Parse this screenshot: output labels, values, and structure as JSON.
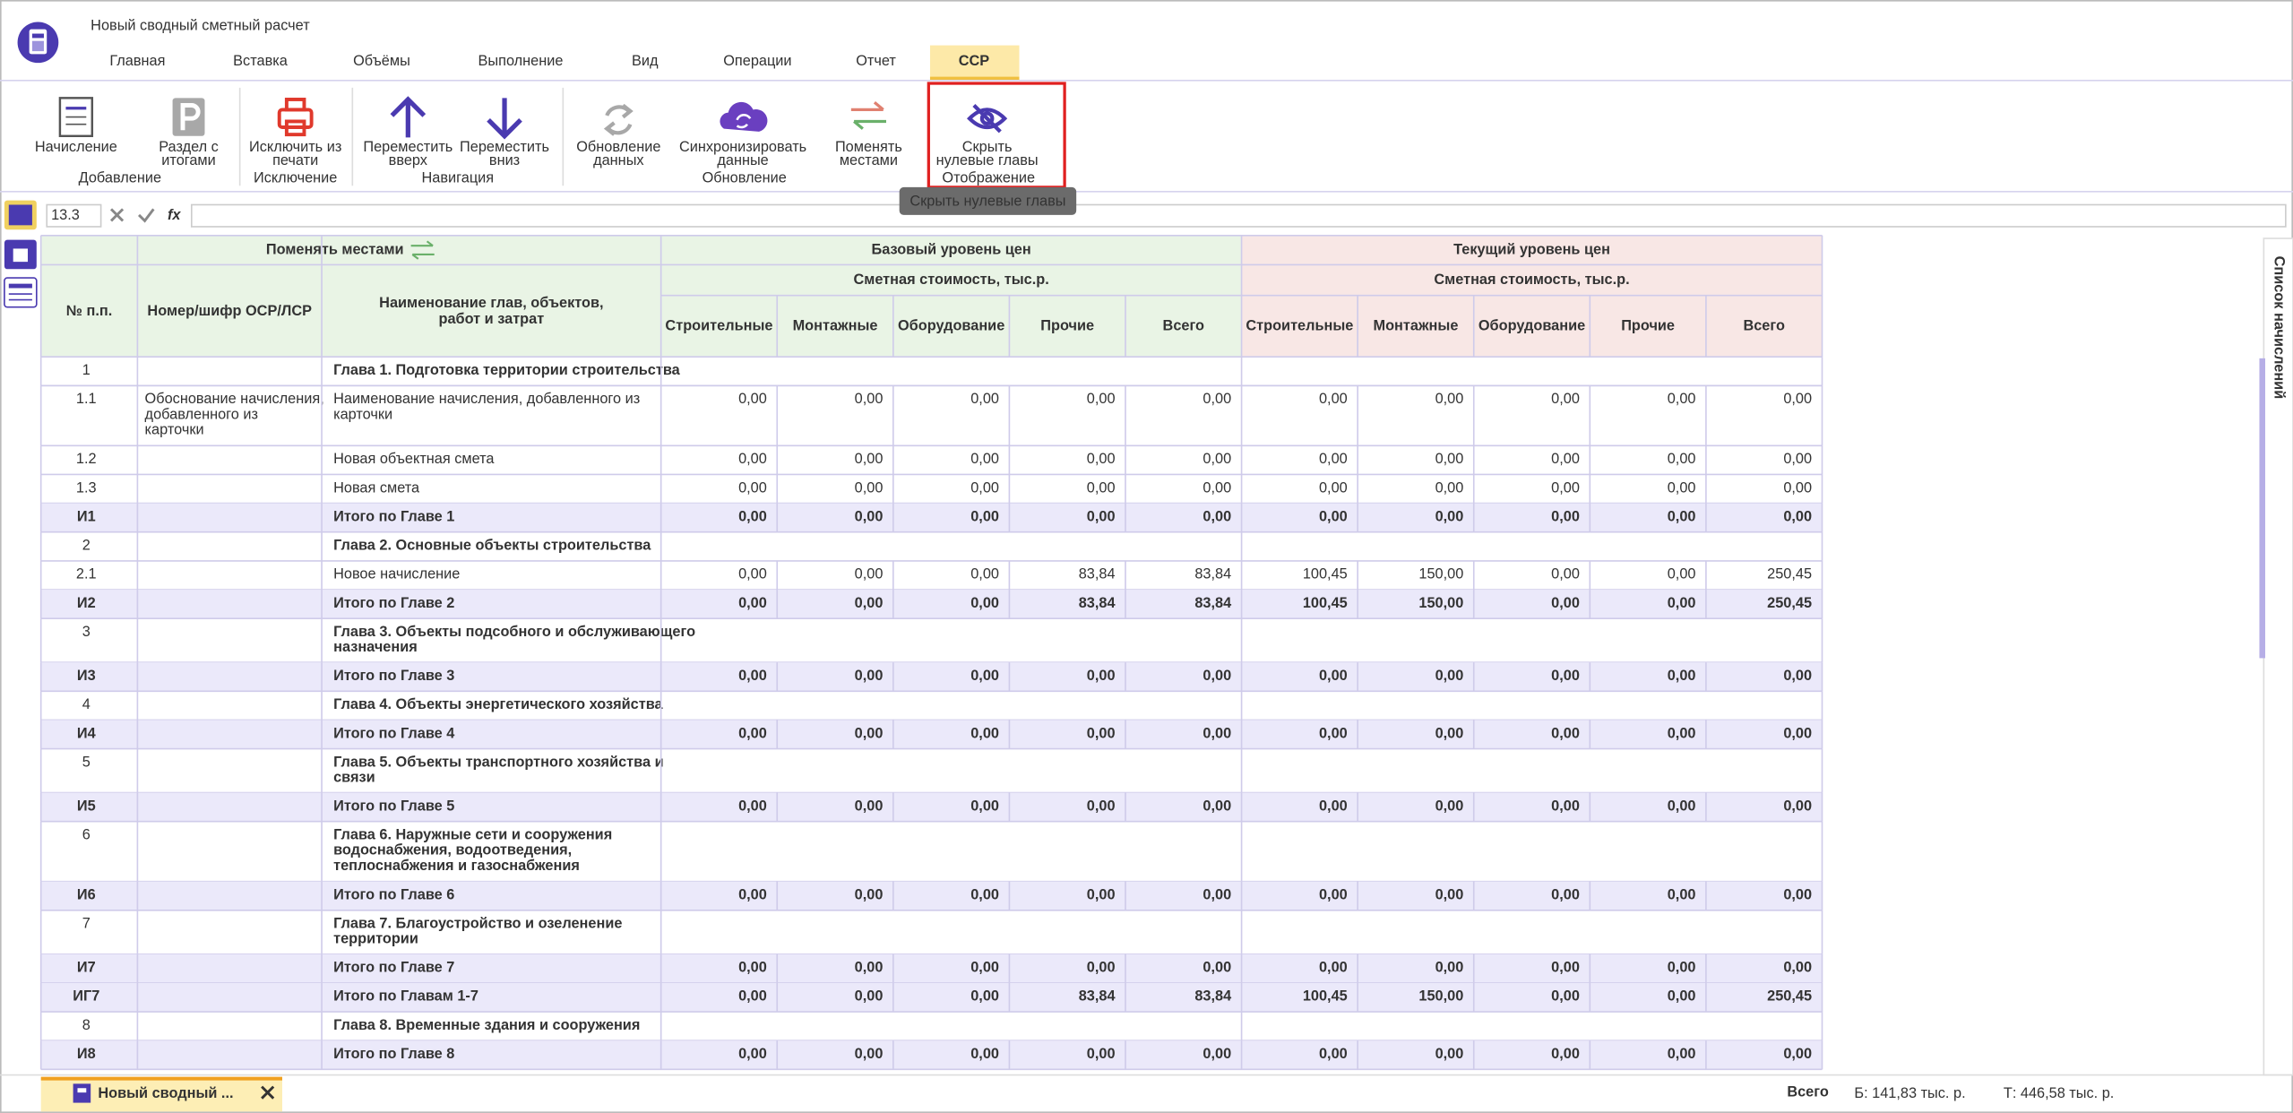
{
  "header": {
    "title": "Новый сводный сметный расчет",
    "tabs": [
      "Главная",
      "Вставка",
      "Объёмы",
      "Выполнение",
      "Вид",
      "Операции",
      "Отчет",
      "ССР"
    ],
    "active_tab": 7
  },
  "ribbon": {
    "buttons": [
      {
        "label": [
          "Начисление"
        ],
        "disabled": false
      },
      {
        "label": [
          "Раздел с",
          "итогами"
        ],
        "disabled": true
      },
      {
        "label": [
          "Исключить из",
          "печати"
        ],
        "disabled": false
      },
      {
        "label": [
          "Переместить",
          "вверх"
        ],
        "disabled": false
      },
      {
        "label": [
          "Переместить",
          "вниз"
        ],
        "disabled": false
      },
      {
        "label": [
          "Обновление",
          "данных"
        ],
        "disabled": true
      },
      {
        "label": [
          "Синхронизировать",
          "данные"
        ],
        "disabled": false
      },
      {
        "label": [
          "Поменять",
          "местами"
        ],
        "disabled": false
      },
      {
        "label": [
          "Скрыть",
          "нулевые главы"
        ],
        "disabled": false
      }
    ],
    "groups": [
      "Добавление",
      "Исключение",
      "Навигация",
      "Обновление",
      "Отображение"
    ]
  },
  "tooltip": "Скрыть нулевые главы",
  "formula_bar": {
    "cell": "13.3",
    "fx": "fx"
  },
  "table": {
    "swap": "Поменять местами",
    "groups": [
      "Базовый уровень цен",
      "Текущий уровень цен"
    ],
    "subgroup": "Сметная стоимость, тыс.р.",
    "columns": [
      [
        "№ п.п."
      ],
      [
        "Номер/шифр ОСР/ЛСР"
      ],
      [
        "Наименование глав, объектов,",
        "работ и затрат"
      ]
    ],
    "value_columns": [
      "Строительные",
      "Монтажные",
      "Оборудование",
      "Прочие",
      "Всего"
    ],
    "rows": [
      {
        "num": "1",
        "name": [
          "Глава 1. Подготовка территории строительства"
        ]
      },
      {
        "num": "1.1",
        "code": [
          "Обоснование начисления,",
          "добавленного из",
          "карточки"
        ],
        "name": [
          "Наименование начисления, добавленного из",
          "карточки"
        ],
        "values": [
          "0,00",
          "0,00",
          "0,00",
          "0,00",
          "0,00",
          "0,00",
          "0,00",
          "0,00",
          "0,00",
          "0,00"
        ]
      },
      {
        "num": "1.2",
        "name": [
          "Новая объектная смета"
        ],
        "values": [
          "0,00",
          "0,00",
          "0,00",
          "0,00",
          "0,00",
          "0,00",
          "0,00",
          "0,00",
          "0,00",
          "0,00"
        ]
      },
      {
        "num": "1.3",
        "name": [
          "Новая смета"
        ],
        "values": [
          "0,00",
          "0,00",
          "0,00",
          "0,00",
          "0,00",
          "0,00",
          "0,00",
          "0,00",
          "0,00",
          "0,00"
        ]
      },
      {
        "num": "И1",
        "name": [
          "Итого по Главе 1"
        ],
        "values": [
          "0,00",
          "0,00",
          "0,00",
          "0,00",
          "0,00",
          "0,00",
          "0,00",
          "0,00",
          "0,00",
          "0,00"
        ]
      },
      {
        "num": "2",
        "name": [
          "Глава 2. Основные объекты строительства"
        ]
      },
      {
        "num": "2.1",
        "name": [
          "Новое начисление"
        ],
        "values": [
          "0,00",
          "0,00",
          "0,00",
          "83,84",
          "83,84",
          "100,45",
          "150,00",
          "0,00",
          "0,00",
          "250,45"
        ]
      },
      {
        "num": "И2",
        "name": [
          "Итого по Главе 2"
        ],
        "values": [
          "0,00",
          "0,00",
          "0,00",
          "83,84",
          "83,84",
          "100,45",
          "150,00",
          "0,00",
          "0,00",
          "250,45"
        ]
      },
      {
        "num": "3",
        "name": [
          "Глава 3. Объекты подсобного и обслуживающего",
          "назначения"
        ]
      },
      {
        "num": "И3",
        "name": [
          "Итого по Главе 3"
        ],
        "values": [
          "0,00",
          "0,00",
          "0,00",
          "0,00",
          "0,00",
          "0,00",
          "0,00",
          "0,00",
          "0,00",
          "0,00"
        ]
      },
      {
        "num": "4",
        "name": [
          "Глава 4. Объекты энергетического хозяйства"
        ]
      },
      {
        "num": "И4",
        "name": [
          "Итого по Главе 4"
        ],
        "values": [
          "0,00",
          "0,00",
          "0,00",
          "0,00",
          "0,00",
          "0,00",
          "0,00",
          "0,00",
          "0,00",
          "0,00"
        ]
      },
      {
        "num": "5",
        "name": [
          "Глава 5. Объекты транспортного хозяйства и",
          "связи"
        ]
      },
      {
        "num": "И5",
        "name": [
          "Итого по Главе 5"
        ],
        "values": [
          "0,00",
          "0,00",
          "0,00",
          "0,00",
          "0,00",
          "0,00",
          "0,00",
          "0,00",
          "0,00",
          "0,00"
        ]
      },
      {
        "num": "6",
        "name": [
          "Глава 6. Наружные сети и сооружения",
          "водоснабжения, водоотведения,",
          "теплоснабжения и газоснабжения"
        ]
      },
      {
        "num": "И6",
        "name": [
          "Итого по Главе 6"
        ],
        "values": [
          "0,00",
          "0,00",
          "0,00",
          "0,00",
          "0,00",
          "0,00",
          "0,00",
          "0,00",
          "0,00",
          "0,00"
        ]
      },
      {
        "num": "7",
        "name": [
          "Глава 7. Благоустройство и озеленение",
          "территории"
        ]
      },
      {
        "num": "И7",
        "name": [
          "Итого по Главе 7"
        ],
        "values": [
          "0,00",
          "0,00",
          "0,00",
          "0,00",
          "0,00",
          "0,00",
          "0,00",
          "0,00",
          "0,00",
          "0,00"
        ]
      },
      {
        "num": "ИГ7",
        "name": [
          "Итого по Главам 1-7"
        ],
        "values": [
          "0,00",
          "0,00",
          "0,00",
          "83,84",
          "83,84",
          "100,45",
          "150,00",
          "0,00",
          "0,00",
          "250,45"
        ]
      },
      {
        "num": "8",
        "name": [
          "Глава 8. Временные здания и сооружения"
        ]
      },
      {
        "num": "И8",
        "name": [
          "Итого по Главе 8"
        ],
        "values": [
          "0,00",
          "0,00",
          "0,00",
          "0,00",
          "0,00",
          "0,00",
          "0,00",
          "0,00",
          "0,00",
          "0,00"
        ]
      }
    ]
  },
  "side_panel": "Список начислений",
  "document_tab": "Новый сводный ...",
  "status": {
    "label": "Всего",
    "base": "Б: 141,83 тыс. р.",
    "current": "Т: 446,58 тыс. р."
  }
}
